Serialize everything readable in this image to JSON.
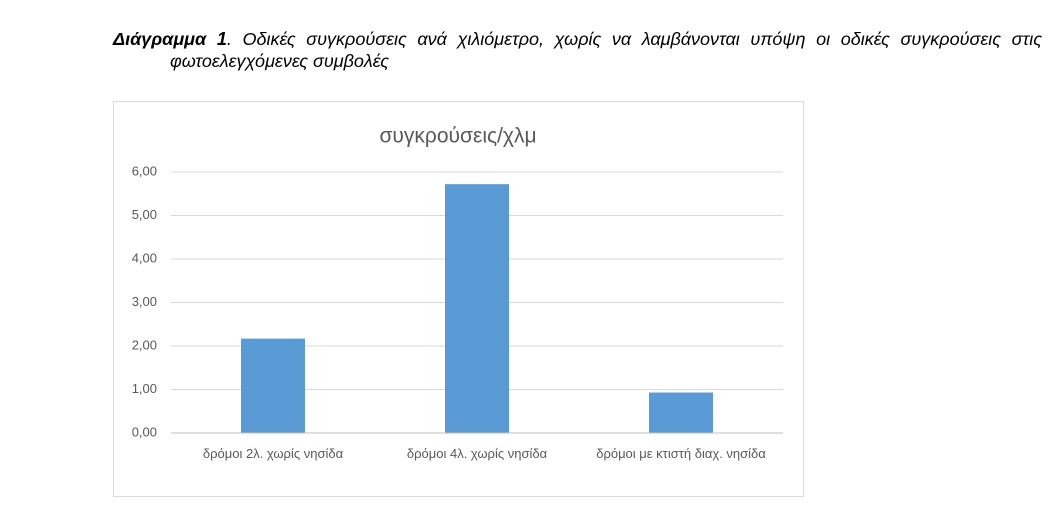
{
  "caption": {
    "label": "Διάγραμμα 1",
    "text": ". Οδικές συγκρούσεις ανά χιλιόμετρο, χωρίς να λαμβάνονται υπόψη οι οδικές συγκρούσεις στις φωτοελεγχόμενες συμβολές"
  },
  "chart_data": {
    "type": "bar",
    "title": "συγκρούσεις/χλμ",
    "categories": [
      "δρόμοι 2λ. χωρίς νησίδα",
      "δρόμοι 4λ. χωρίς νησίδα",
      "δρόμοι με κτιστή διαχ. νησίδα"
    ],
    "values": [
      2.17,
      5.72,
      0.93
    ],
    "color": "#5b9bd5",
    "ylim": [
      0,
      6
    ],
    "yticks": [
      {
        "value": 0,
        "label": "0,00"
      },
      {
        "value": 1,
        "label": "1,00"
      },
      {
        "value": 2,
        "label": "2,00"
      },
      {
        "value": 3,
        "label": "3,00"
      },
      {
        "value": 4,
        "label": "4,00"
      },
      {
        "value": 5,
        "label": "5,00"
      },
      {
        "value": 6,
        "label": "6,00"
      }
    ],
    "grid": true
  }
}
